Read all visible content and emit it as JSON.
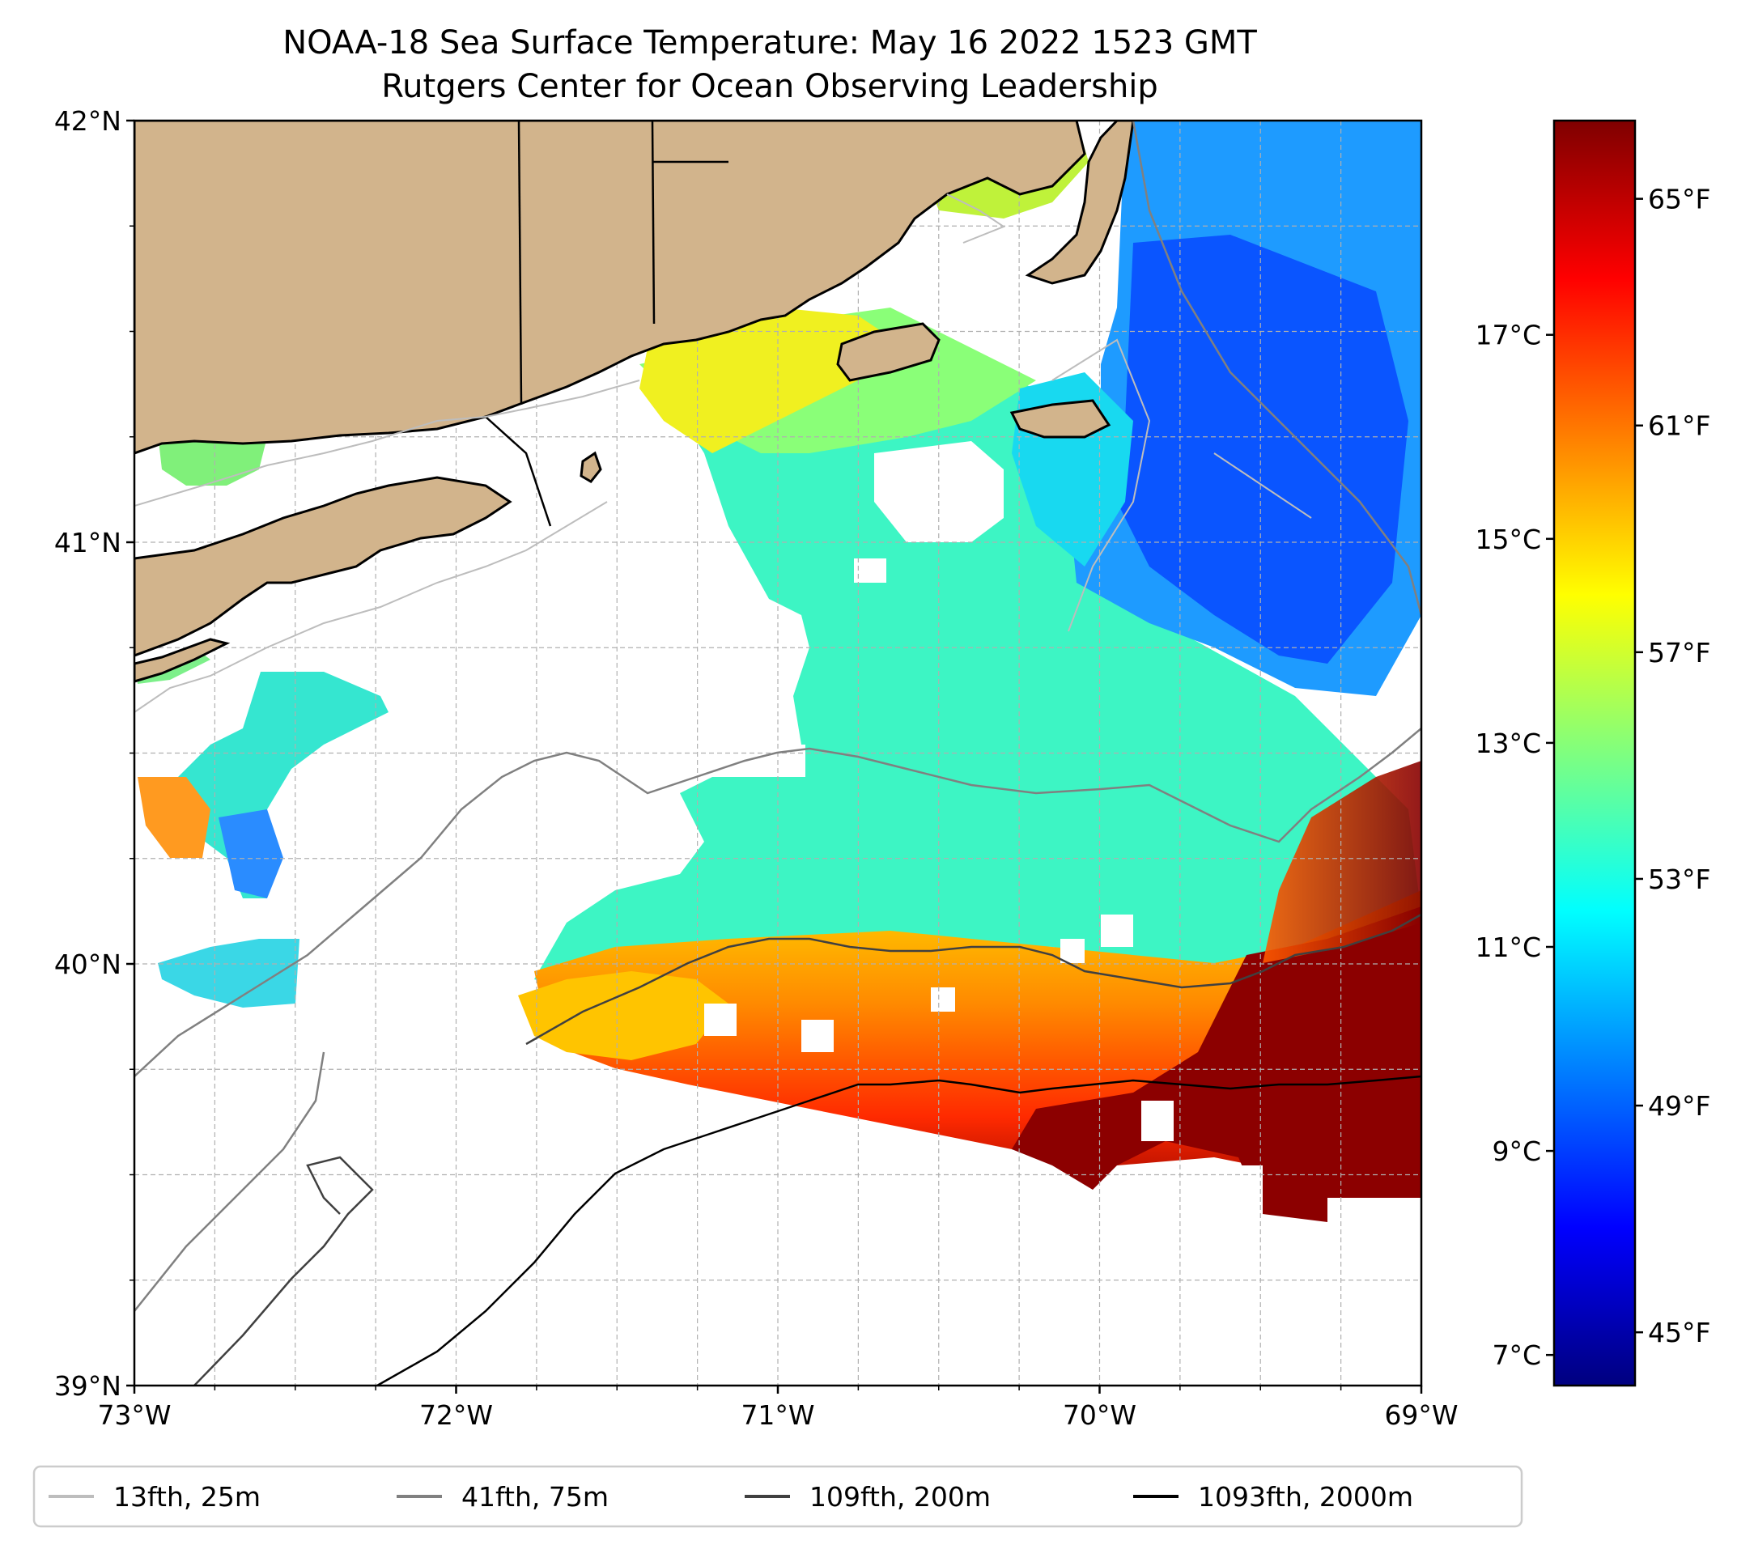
{
  "title": {
    "line1": "NOAA-18 Sea Surface Temperature: May 16 2022 1523 GMT",
    "line2": "Rutgers Center for Ocean Observing Leadership"
  },
  "map": {
    "extent": {
      "lon_min": -73,
      "lon_max": -69,
      "lat_min": 39,
      "lat_max": 42
    },
    "gridlines": true,
    "land_color": "#d2b48c",
    "lat_ticks": [
      {
        "value": 42,
        "label": "42°N"
      },
      {
        "value": 41,
        "label": "41°N"
      },
      {
        "value": 40,
        "label": "40°N"
      },
      {
        "value": 39,
        "label": "39°N"
      }
    ],
    "lon_ticks": [
      {
        "value": -73,
        "label": "73°W"
      },
      {
        "value": -72,
        "label": "72°W"
      },
      {
        "value": -71,
        "label": "71°W"
      },
      {
        "value": -70,
        "label": "70°W"
      },
      {
        "value": -69,
        "label": "69°W"
      }
    ]
  },
  "colorbar": {
    "colormap": "jet",
    "range_c": [
      6.7,
      19.1
    ],
    "celsius_ticks": [
      {
        "value": 17,
        "label": "17°C"
      },
      {
        "value": 15,
        "label": "15°C"
      },
      {
        "value": 13,
        "label": "13°C"
      },
      {
        "value": 11,
        "label": "11°C"
      },
      {
        "value": 9,
        "label": "9°C"
      },
      {
        "value": 7,
        "label": "7°C"
      }
    ],
    "fahrenheit_ticks": [
      {
        "value": 65,
        "label": "65°F"
      },
      {
        "value": 61,
        "label": "61°F"
      },
      {
        "value": 57,
        "label": "57°F"
      },
      {
        "value": 53,
        "label": "53°F"
      },
      {
        "value": 49,
        "label": "49°F"
      },
      {
        "value": 45,
        "label": "45°F"
      }
    ]
  },
  "legend": {
    "placement": "bottom",
    "items": [
      {
        "label": "13fth, 25m",
        "color": "#bdbdbd"
      },
      {
        "label": "41fth, 75m",
        "color": "#808080"
      },
      {
        "label": "109fth, 200m",
        "color": "#404040"
      },
      {
        "label": "1093fth, 2000m",
        "color": "#000000"
      }
    ]
  }
}
